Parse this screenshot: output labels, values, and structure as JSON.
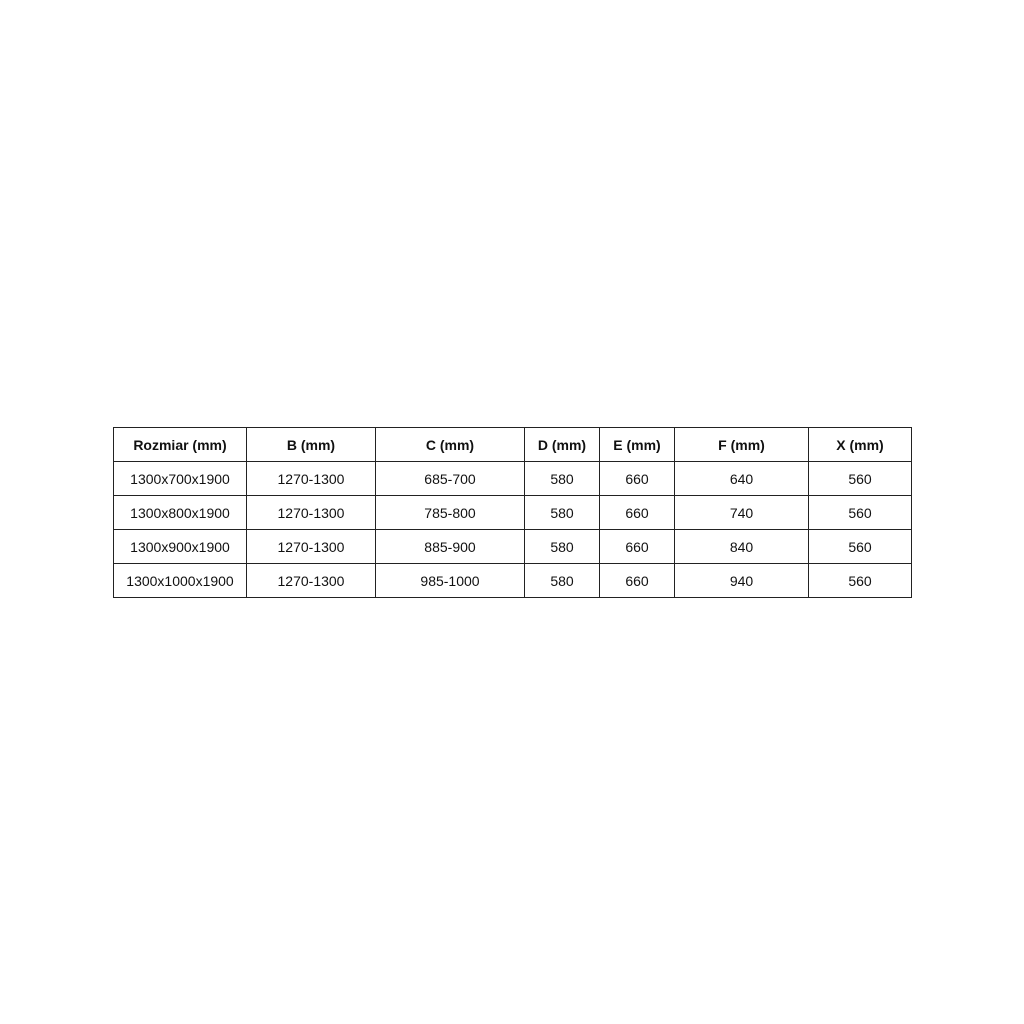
{
  "table": {
    "headers": [
      "Rozmiar (mm)",
      "B (mm)",
      "C (mm)",
      "D (mm)",
      "E (mm)",
      "F (mm)",
      "X (mm)"
    ],
    "rows": [
      [
        "1300x700x1900",
        "1270-1300",
        "685-700",
        "580",
        "660",
        "640",
        "560"
      ],
      [
        "1300x800x1900",
        "1270-1300",
        "785-800",
        "580",
        "660",
        "740",
        "560"
      ],
      [
        "1300x900x1900",
        "1270-1300",
        "885-900",
        "580",
        "660",
        "840",
        "560"
      ],
      [
        "1300x1000x1900",
        "1270-1300",
        "985-1000",
        "580",
        "660",
        "940",
        "560"
      ]
    ]
  }
}
